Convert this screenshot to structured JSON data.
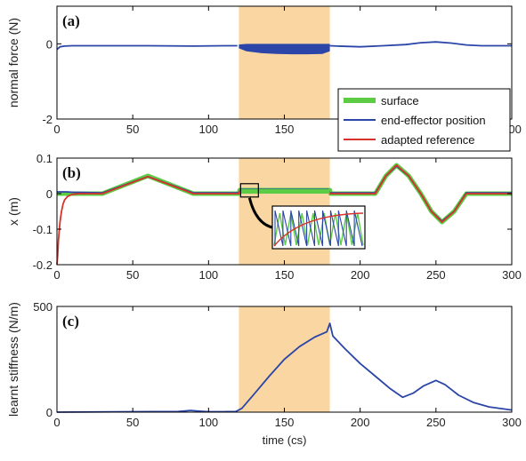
{
  "colors": {
    "surface": "#5ccc45",
    "end_effector": "#2b45a8",
    "adapted_reference": "#d8322a",
    "highlight": "#fad7a2",
    "axis": "#000000"
  },
  "chart_data": [
    {
      "type": "line",
      "panel_label": "(a)",
      "ylabel": "normal force (N)",
      "xlim": [
        0,
        300
      ],
      "ylim": [
        -2,
        1
      ],
      "yticks": [
        -2,
        0
      ],
      "xticks": [
        0,
        50,
        100,
        150,
        200,
        250,
        300
      ],
      "highlight_range": [
        120,
        180
      ],
      "series": [
        {
          "name": "end-effector position",
          "color_key": "end_effector",
          "x": [
            0,
            2,
            5,
            10,
            30,
            60,
            90,
            110,
            119
          ],
          "y": [
            -0.15,
            -0.08,
            -0.06,
            -0.05,
            -0.05,
            -0.05,
            -0.06,
            -0.05,
            -0.05
          ]
        }
      ],
      "band": {
        "x": [
          120,
          125,
          135,
          145,
          155,
          165,
          175,
          180
        ],
        "upper": [
          -0.02,
          0.0,
          0.0,
          0.0,
          0.0,
          0.0,
          0.0,
          0.0
        ],
        "lower": [
          -0.12,
          -0.2,
          -0.25,
          -0.27,
          -0.28,
          -0.28,
          -0.27,
          -0.2
        ],
        "color_key": "end_effector"
      },
      "tail": {
        "x": [
          180,
          185,
          200,
          215,
          230,
          240,
          250,
          260,
          270,
          280,
          300
        ],
        "y": [
          -0.05,
          -0.06,
          -0.08,
          -0.05,
          -0.02,
          0.03,
          0.05,
          0.02,
          -0.03,
          -0.05,
          -0.05
        ],
        "color_key": "end_effector"
      }
    },
    {
      "type": "line",
      "panel_label": "(b)",
      "ylabel": "x (m)",
      "xlim": [
        0,
        300
      ],
      "ylim": [
        -0.2,
        0.1
      ],
      "yticks": [
        -0.2,
        -0.1,
        0,
        0.1
      ],
      "xticks": [
        0,
        50,
        100,
        150,
        200,
        250,
        300
      ],
      "highlight_range": [
        120,
        180
      ],
      "legend": [
        "surface",
        "end-effector position",
        "adapted reference"
      ],
      "legend_placement": "top-right",
      "series": [
        {
          "name": "surface",
          "color_key": "surface",
          "x": [
            0,
            30,
            60,
            90,
            120,
            120.5,
            180,
            180.5,
            210,
            217,
            224,
            232,
            240,
            247,
            254,
            262,
            270,
            300
          ],
          "y": [
            0,
            0,
            0.05,
            0,
            0,
            0.01,
            0.01,
            0,
            0,
            0.05,
            0.08,
            0.05,
            0,
            -0.05,
            -0.08,
            -0.05,
            0,
            0
          ]
        },
        {
          "name": "end-effector position",
          "color_key": "end_effector",
          "x": [
            0,
            0.5,
            2,
            4,
            6,
            10,
            30,
            60,
            90,
            120,
            121,
            179,
            180,
            210,
            217,
            224,
            232,
            240,
            247,
            254,
            262,
            270,
            300
          ],
          "y": [
            0.005,
            0.005,
            0.005,
            0.005,
            0.005,
            0.004,
            0.002,
            0.048,
            0.002,
            0.002,
            0.012,
            0.012,
            0.002,
            0.002,
            0.05,
            0.078,
            0.05,
            0.0,
            -0.05,
            -0.078,
            -0.05,
            0.002,
            0.002
          ]
        },
        {
          "name": "adapted reference",
          "color_key": "adapted_reference",
          "x": [
            0,
            0.5,
            1,
            2,
            3,
            4,
            5,
            7,
            10,
            15,
            30,
            60,
            90,
            120,
            121,
            179,
            180,
            210,
            217,
            224,
            232,
            240,
            247,
            254,
            262,
            270,
            300
          ],
          "y": [
            -0.2,
            -0.17,
            -0.13,
            -0.08,
            -0.05,
            -0.03,
            -0.018,
            -0.008,
            -0.002,
            0,
            0,
            0.048,
            0,
            0,
            0.01,
            0.01,
            0,
            0,
            0.05,
            0.08,
            0.05,
            0,
            -0.05,
            -0.08,
            -0.05,
            0,
            0
          ]
        }
      ],
      "inset": {
        "anchor_x": 127,
        "anchor_y": 0.003,
        "note": "zoomed oscillation"
      }
    },
    {
      "type": "line",
      "panel_label": "(c)",
      "ylabel": "learnt stiffness (N/m)",
      "xlabel": "time (cs)",
      "xlim": [
        0,
        300
      ],
      "ylim": [
        0,
        500
      ],
      "yticks": [
        0,
        500
      ],
      "xticks": [
        0,
        50,
        100,
        150,
        200,
        250,
        300
      ],
      "highlight_range": [
        120,
        180
      ],
      "series": [
        {
          "name": "learnt stiffness",
          "color_key": "end_effector",
          "x": [
            0,
            50,
            80,
            88,
            95,
            100,
            110,
            118,
            122,
            130,
            140,
            150,
            160,
            170,
            178,
            180,
            182,
            190,
            200,
            210,
            220,
            228,
            235,
            242,
            250,
            256,
            265,
            275,
            285,
            300
          ],
          "y": [
            0,
            2,
            3,
            8,
            4,
            2,
            2,
            3,
            18,
            85,
            170,
            250,
            310,
            355,
            380,
            420,
            360,
            300,
            230,
            170,
            110,
            70,
            90,
            125,
            150,
            130,
            80,
            45,
            25,
            10
          ]
        }
      ]
    }
  ],
  "legend": {
    "items": [
      {
        "label": "surface",
        "color_key": "surface"
      },
      {
        "label": "end-effector position",
        "color_key": "end_effector"
      },
      {
        "label": "adapted reference",
        "color_key": "adapted_reference"
      }
    ]
  }
}
